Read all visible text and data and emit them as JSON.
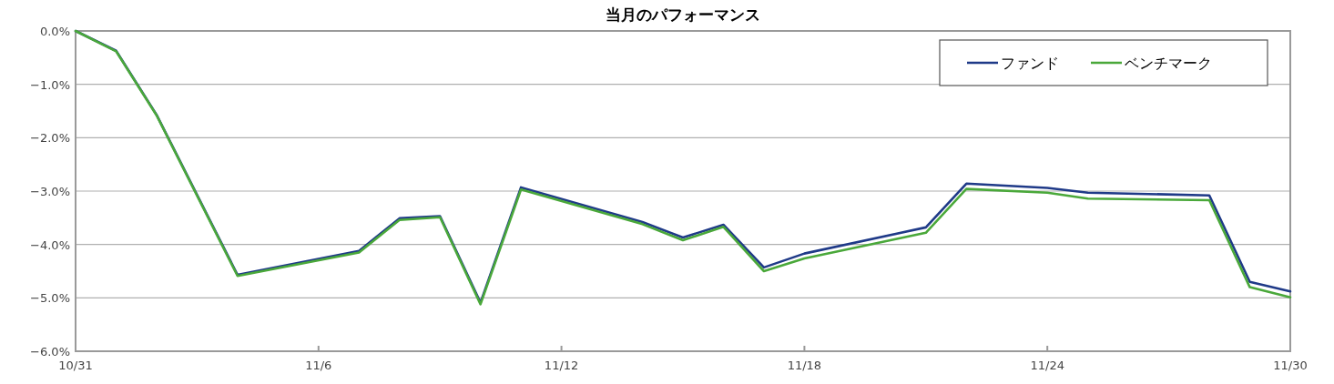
{
  "chart_data": {
    "type": "line",
    "title": "当月のパフォーマンス",
    "x": [
      "--10-31",
      "--11-01",
      "--11-02",
      "--11-04",
      "--11-07",
      "--11-08",
      "--11-09",
      "--11-10",
      "--11-11",
      "--11-14",
      "--11-15",
      "--11-16",
      "--11-17",
      "--11-18",
      "--11-21",
      "--11-22",
      "--11-24",
      "--11-25",
      "--11-28",
      "--11-29",
      "--11-30"
    ],
    "series": [
      {
        "name": "ファンド",
        "color": "#1f3a88",
        "values": [
          0,
          -0.37,
          -1.57,
          -4.57,
          -4.12,
          -3.51,
          -3.47,
          -5.09,
          -2.93,
          -3.58,
          -3.87,
          -3.63,
          -4.43,
          -4.17,
          -3.68,
          -2.86,
          -2.94,
          -3.03,
          -3.08,
          -4.7,
          -4.88
        ]
      },
      {
        "name": "ベンチマーク",
        "color": "#4aa83a",
        "values": [
          0,
          -0.38,
          -1.58,
          -4.59,
          -4.15,
          -3.54,
          -3.49,
          -5.12,
          -2.97,
          -3.62,
          -3.92,
          -3.67,
          -4.5,
          -4.26,
          -3.78,
          -2.96,
          -3.03,
          -3.14,
          -3.17,
          -4.8,
          -4.99
        ]
      }
    ],
    "xlim": [
      "--10-31",
      "--11-30"
    ],
    "xticks": [
      {
        "value": "--10-31",
        "label": "10/31"
      },
      {
        "value": "--11-06",
        "label": "11/6"
      },
      {
        "value": "--11-12",
        "label": "11/12"
      },
      {
        "value": "--11-18",
        "label": "11/18"
      },
      {
        "value": "--11-24",
        "label": "11/24"
      },
      {
        "value": "--11-30",
        "label": "11/30"
      }
    ],
    "ylim": [
      -6,
      0
    ],
    "yticks": [
      {
        "value": 0,
        "label": "0.0%"
      },
      {
        "value": -1,
        "label": "−1.0%"
      },
      {
        "value": -2,
        "label": "−2.0%"
      },
      {
        "value": -3,
        "label": "−3.0%"
      },
      {
        "value": -4,
        "label": "−4.0%"
      },
      {
        "value": -5,
        "label": "−5.0%"
      },
      {
        "value": -6,
        "label": "−6.0%"
      }
    ],
    "grid": "y",
    "legend": "top right",
    "marker": "none",
    "line_style": "solid"
  }
}
